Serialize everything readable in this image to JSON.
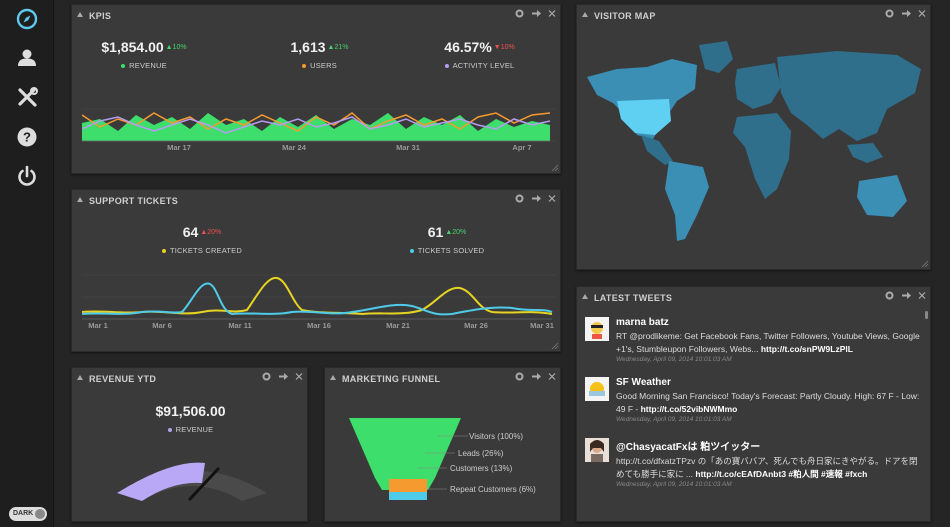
{
  "sidebar": {
    "nav": [
      {
        "icon": "compass-icon"
      },
      {
        "icon": "user-icon"
      },
      {
        "icon": "tools-icon"
      },
      {
        "icon": "help-icon"
      },
      {
        "icon": "power-icon"
      }
    ],
    "dark_label": "DARK"
  },
  "colors": {
    "green": "#3dde6b",
    "orange": "#f59a2e",
    "purple": "#b69cf2",
    "yellow": "#e6d322",
    "cyan": "#4ecbe9",
    "gauge": "#b8a8f5",
    "panel": "#3a3a3a"
  },
  "kpis": {
    "title": "KPIS",
    "items": [
      {
        "value": "$1,854.00",
        "delta": "10%",
        "dir": "up",
        "label": "REVENUE",
        "color": "#3dde6b"
      },
      {
        "value": "1,613",
        "delta": "21%",
        "dir": "up",
        "label": "USERS",
        "color": "#f59a2e"
      },
      {
        "value": "46.57%",
        "delta": "10%",
        "dir": "down",
        "label": "ACTIVITY LEVEL",
        "color": "#b69cf2"
      }
    ],
    "x_ticks": [
      "Mar 17",
      "Mar 24",
      "Mar 31",
      "Apr 7"
    ]
  },
  "support": {
    "title": "SUPPORT TICKETS",
    "items": [
      {
        "value": "64",
        "delta": "20%",
        "dir": "down",
        "label": "TICKETS CREATED",
        "color": "#e6d322"
      },
      {
        "value": "61",
        "delta": "20%",
        "dir": "up",
        "label": "TICKETS SOLVED",
        "color": "#4ecbe9"
      }
    ],
    "x_ticks": [
      "Mar 1",
      "Mar 6",
      "Mar 11",
      "Mar 16",
      "Mar 21",
      "Mar 26",
      "Mar 31"
    ]
  },
  "revenue_ytd": {
    "title": "REVENUE YTD",
    "value": "$91,506.00",
    "label": "REVENUE",
    "fraction": 0.62
  },
  "funnel": {
    "title": "MARKETING FUNNEL",
    "stages": [
      {
        "label": "Visitors (100%)",
        "color": "#3dde6b"
      },
      {
        "label": "Leads (26%)",
        "color": "#3dde6b"
      },
      {
        "label": "Customers (13%)",
        "color": "#f59a2e"
      },
      {
        "label": "Repeat Customers (6%)",
        "color": "#4ecbe9"
      }
    ]
  },
  "visitor_map": {
    "title": "VISITOR MAP"
  },
  "tweets": {
    "title": "LATEST TWEETS",
    "items": [
      {
        "name": "marna batz",
        "text": "RT @prodlikeme: Get Facebook Fans, Twitter Followers, Youtube Views, Google +1's, Stumbleupon Followers, Webs... ",
        "link": "http://t.co/snPW9LzPlL",
        "time": "Wednesday, April 09, 2014 10:01:03 AM"
      },
      {
        "name": "SF Weather",
        "text": "Good Morning San Francisco! Today's Forecast: Partly Cloudy. High: 67 F - Low: 49 F - ",
        "link": "http://t.co/52vibNWMmo",
        "time": "Wednesday, April 09, 2014 10:01:03 AM"
      },
      {
        "name": "@ChasyacatFxは 粕ツイッター",
        "text": "http://t.co/dfxatzTPzv の「あの寶ババア、死んでも舟日家にきやがる。ドアを閉めても勝手に家に ... ",
        "link": "http://t.co/cEAfDAnbt3 #粕人間 #速報 #fxch",
        "time": "Wednesday, April 09, 2014 10:01:03 AM"
      }
    ]
  }
}
